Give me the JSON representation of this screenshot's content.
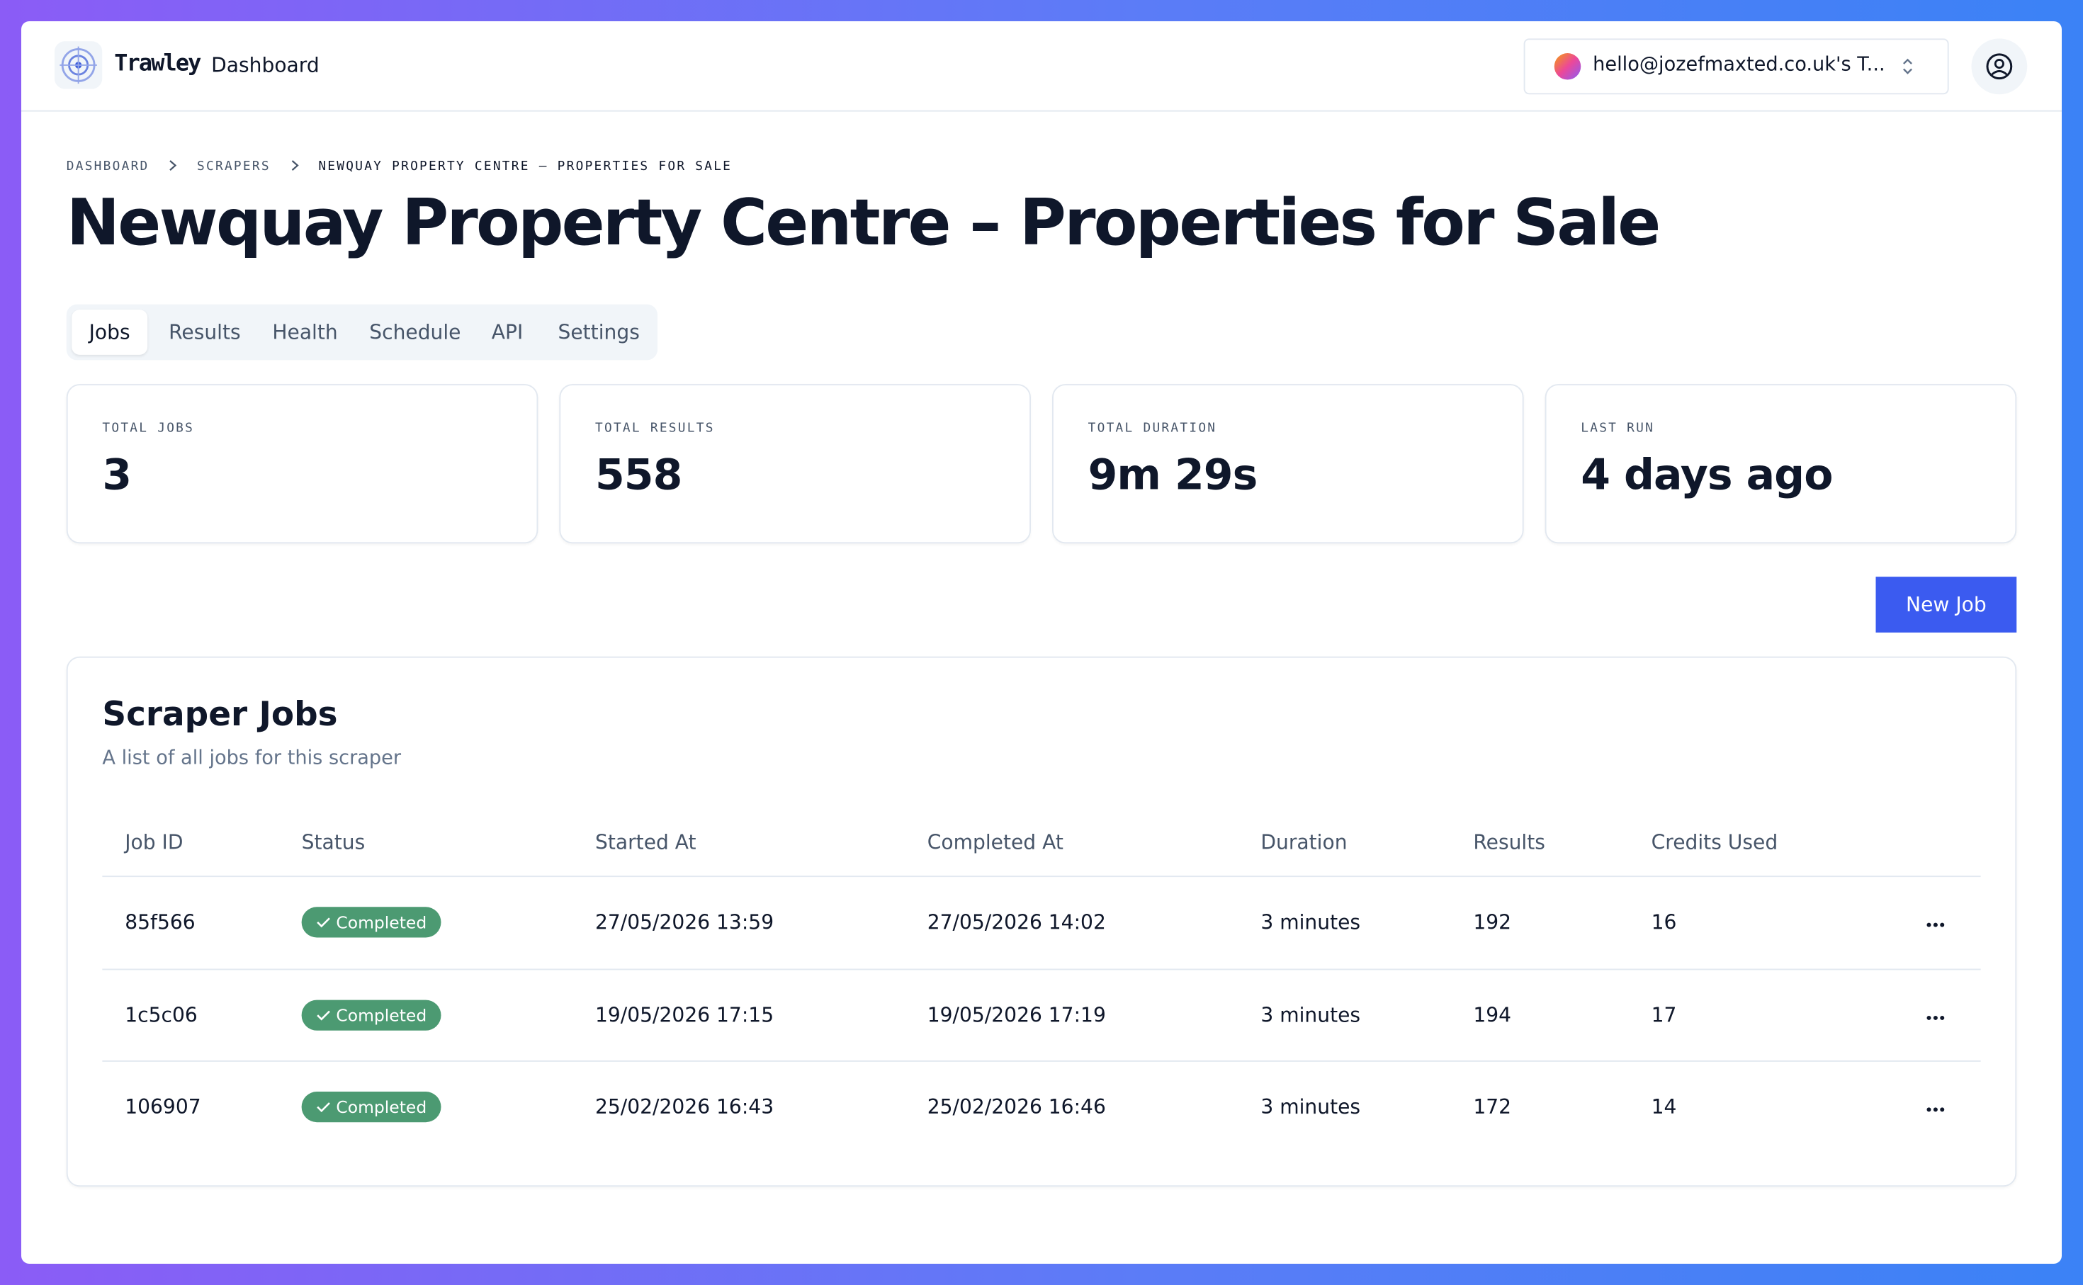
{
  "header": {
    "brand": "Trawley",
    "nav": "Dashboard",
    "account": "hello@jozefmaxted.co.uk's T..."
  },
  "breadcrumb": [
    "DASHBOARD",
    "SCRAPERS",
    "NEWQUAY PROPERTY CENTRE – PROPERTIES FOR SALE"
  ],
  "page": {
    "title": "Newquay Property Centre – Properties for Sale"
  },
  "tabs": [
    "Jobs",
    "Results",
    "Health",
    "Schedule",
    "API",
    "Settings"
  ],
  "stats": [
    {
      "label": "TOTAL JOBS",
      "value": "3"
    },
    {
      "label": "TOTAL RESULTS",
      "value": "558"
    },
    {
      "label": "TOTAL DURATION",
      "value": "9m 29s"
    },
    {
      "label": "LAST RUN",
      "value": "4 days ago"
    }
  ],
  "new_job": "New Job",
  "table": {
    "title": "Scraper Jobs",
    "subtitle": "A list of all jobs for this scraper",
    "columns": [
      "Job ID",
      "Status",
      "Started At",
      "Completed At",
      "Duration",
      "Results",
      "Credits Used"
    ],
    "rows": [
      [
        "85f566",
        "Completed",
        "27/05/2026 13:59",
        "27/05/2026 14:02",
        "3 minutes",
        "192",
        "16"
      ],
      [
        "1c5c06",
        "Completed",
        "19/05/2026 17:15",
        "19/05/2026 17:19",
        "3 minutes",
        "194",
        "17"
      ],
      [
        "106907",
        "Completed",
        "25/02/2026 16:43",
        "25/02/2026 16:46",
        "3 minutes",
        "172",
        "14"
      ]
    ]
  }
}
